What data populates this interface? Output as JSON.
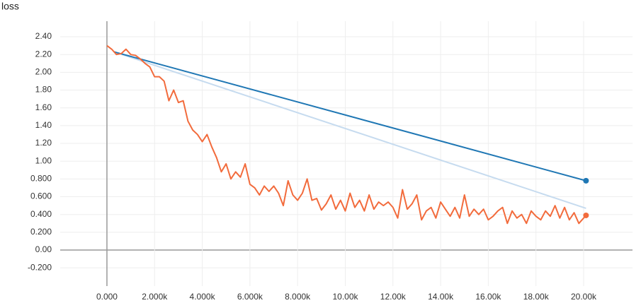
{
  "chart_data": {
    "type": "line",
    "title": "loss",
    "xlim": [
      -1960,
      22050
    ],
    "ylim": [
      -0.405,
      2.575
    ],
    "grid": true,
    "xticks": [
      {
        "value": 0,
        "label": "0.000"
      },
      {
        "value": 2000,
        "label": "2.000k"
      },
      {
        "value": 4000,
        "label": "4.000k"
      },
      {
        "value": 6000,
        "label": "6.000k"
      },
      {
        "value": 8000,
        "label": "8.000k"
      },
      {
        "value": 10000,
        "label": "10.00k"
      },
      {
        "value": 12000,
        "label": "12.00k"
      },
      {
        "value": 14000,
        "label": "14.00k"
      },
      {
        "value": 16000,
        "label": "16.00k"
      },
      {
        "value": 18000,
        "label": "18.00k"
      },
      {
        "value": 20000,
        "label": "20.00k"
      }
    ],
    "yticks": [
      {
        "value": -0.2,
        "label": "-0.200"
      },
      {
        "value": 0,
        "label": "0.00"
      },
      {
        "value": 0.2,
        "label": "0.200"
      },
      {
        "value": 0.4,
        "label": "0.400"
      },
      {
        "value": 0.6,
        "label": "0.600"
      },
      {
        "value": 0.8,
        "label": "0.800"
      },
      {
        "value": 1,
        "label": "1.00"
      },
      {
        "value": 1.2,
        "label": "1.20"
      },
      {
        "value": 1.4,
        "label": "1.40"
      },
      {
        "value": 1.6,
        "label": "1.60"
      },
      {
        "value": 1.8,
        "label": "1.80"
      },
      {
        "value": 2,
        "label": "2.00"
      },
      {
        "value": 2.2,
        "label": "2.20"
      },
      {
        "value": 2.4,
        "label": "2.40"
      }
    ],
    "series": [
      {
        "color": "#c6dbef",
        "marker_last": false,
        "x": [
          300,
          20100
        ],
        "values": [
          2.23,
          0.47
        ]
      },
      {
        "color": "#1f77b4",
        "marker_last": true,
        "x": [
          300,
          20100
        ],
        "values": [
          2.23,
          0.78
        ]
      },
      {
        "color": "#f26b3c",
        "marker_last": true,
        "x": [
          0,
          200,
          400,
          600,
          800,
          1000,
          1200,
          1400,
          1600,
          1800,
          2000,
          2200,
          2400,
          2600,
          2800,
          3000,
          3200,
          3400,
          3600,
          3800,
          4000,
          4200,
          4400,
          4600,
          4800,
          5000,
          5200,
          5400,
          5600,
          5800,
          6000,
          6200,
          6400,
          6600,
          6800,
          7000,
          7200,
          7400,
          7600,
          7800,
          8000,
          8200,
          8400,
          8600,
          8800,
          9000,
          9200,
          9400,
          9600,
          9800,
          10000,
          10200,
          10400,
          10600,
          10800,
          11000,
          11200,
          11400,
          11600,
          11800,
          12000,
          12200,
          12400,
          12600,
          12800,
          13000,
          13200,
          13400,
          13600,
          13800,
          14000,
          14200,
          14400,
          14600,
          14800,
          15000,
          15200,
          15400,
          15600,
          15800,
          16000,
          16200,
          16400,
          16600,
          16800,
          17000,
          17200,
          17400,
          17600,
          17800,
          18000,
          18200,
          18400,
          18600,
          18800,
          19000,
          19200,
          19400,
          19600,
          19800,
          20100
        ],
        "values": [
          2.3,
          2.26,
          2.2,
          2.21,
          2.26,
          2.2,
          2.19,
          2.15,
          2.1,
          2.06,
          1.95,
          1.95,
          1.9,
          1.68,
          1.8,
          1.66,
          1.68,
          1.45,
          1.35,
          1.3,
          1.22,
          1.3,
          1.16,
          1.04,
          0.88,
          0.97,
          0.8,
          0.88,
          0.82,
          0.97,
          0.74,
          0.7,
          0.62,
          0.72,
          0.66,
          0.72,
          0.64,
          0.5,
          0.78,
          0.62,
          0.56,
          0.64,
          0.8,
          0.56,
          0.58,
          0.45,
          0.52,
          0.62,
          0.46,
          0.56,
          0.44,
          0.64,
          0.48,
          0.56,
          0.44,
          0.62,
          0.46,
          0.54,
          0.5,
          0.54,
          0.48,
          0.36,
          0.68,
          0.46,
          0.52,
          0.62,
          0.34,
          0.44,
          0.48,
          0.36,
          0.54,
          0.46,
          0.38,
          0.48,
          0.36,
          0.62,
          0.38,
          0.46,
          0.4,
          0.46,
          0.34,
          0.38,
          0.44,
          0.48,
          0.3,
          0.44,
          0.36,
          0.4,
          0.3,
          0.44,
          0.38,
          0.34,
          0.44,
          0.38,
          0.5,
          0.36,
          0.48,
          0.34,
          0.42,
          0.3,
          0.39
        ]
      }
    ]
  }
}
